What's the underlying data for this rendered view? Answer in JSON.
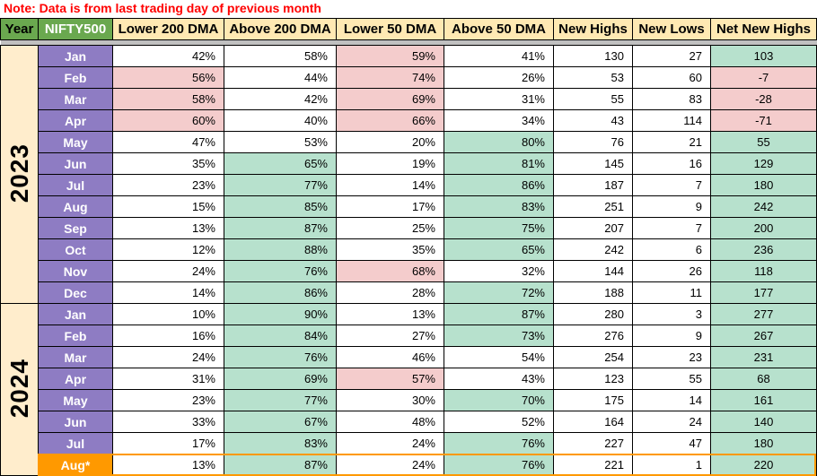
{
  "note": "Note: Data is from last trading day of previous month",
  "colors": {
    "header_green": "#6aa84f",
    "header_cream": "#ffe9b3",
    "year_cream": "#ffedcc",
    "month_purple": "#8e7cc3",
    "month_orange": "#ff9900",
    "cell_green": "#b7e1cd",
    "cell_pink": "#f4cccc",
    "band_gray": "#c0c0c0",
    "note_red": "#ff0000"
  },
  "chart_data": {
    "type": "table",
    "corner_headers": [
      "Year",
      "NIFTY500"
    ],
    "columns": [
      "Lower 200 DMA",
      "Above 200 DMA",
      "Lower 50 DMA",
      "Above 50 DMA",
      "New Highs",
      "New Lows",
      "Net New Highs"
    ],
    "years": [
      {
        "label": "2023",
        "rows": [
          {
            "month": "Jan",
            "values": [
              "42%",
              "58%",
              "59%",
              "41%",
              "130",
              "27",
              "103"
            ],
            "fills": [
              "w",
              "w",
              "p",
              "w",
              "w",
              "w",
              "g"
            ]
          },
          {
            "month": "Feb",
            "values": [
              "56%",
              "44%",
              "74%",
              "26%",
              "53",
              "60",
              "-7"
            ],
            "fills": [
              "p",
              "w",
              "p",
              "w",
              "w",
              "w",
              "p"
            ]
          },
          {
            "month": "Mar",
            "values": [
              "58%",
              "42%",
              "69%",
              "31%",
              "55",
              "83",
              "-28"
            ],
            "fills": [
              "p",
              "w",
              "p",
              "w",
              "w",
              "w",
              "p"
            ]
          },
          {
            "month": "Apr",
            "values": [
              "60%",
              "40%",
              "66%",
              "34%",
              "43",
              "114",
              "-71"
            ],
            "fills": [
              "p",
              "w",
              "p",
              "w",
              "w",
              "w",
              "p"
            ]
          },
          {
            "month": "May",
            "values": [
              "47%",
              "53%",
              "20%",
              "80%",
              "76",
              "21",
              "55"
            ],
            "fills": [
              "w",
              "w",
              "w",
              "g",
              "w",
              "w",
              "g"
            ]
          },
          {
            "month": "Jun",
            "values": [
              "35%",
              "65%",
              "19%",
              "81%",
              "145",
              "16",
              "129"
            ],
            "fills": [
              "w",
              "g",
              "w",
              "g",
              "w",
              "w",
              "g"
            ]
          },
          {
            "month": "Jul",
            "values": [
              "23%",
              "77%",
              "14%",
              "86%",
              "187",
              "7",
              "180"
            ],
            "fills": [
              "w",
              "g",
              "w",
              "g",
              "w",
              "w",
              "g"
            ]
          },
          {
            "month": "Aug",
            "values": [
              "15%",
              "85%",
              "17%",
              "83%",
              "251",
              "9",
              "242"
            ],
            "fills": [
              "w",
              "g",
              "w",
              "g",
              "w",
              "w",
              "g"
            ]
          },
          {
            "month": "Sep",
            "values": [
              "13%",
              "87%",
              "25%",
              "75%",
              "207",
              "7",
              "200"
            ],
            "fills": [
              "w",
              "g",
              "w",
              "g",
              "w",
              "w",
              "g"
            ]
          },
          {
            "month": "Oct",
            "values": [
              "12%",
              "88%",
              "35%",
              "65%",
              "242",
              "6",
              "236"
            ],
            "fills": [
              "w",
              "g",
              "w",
              "g",
              "w",
              "w",
              "g"
            ]
          },
          {
            "month": "Nov",
            "values": [
              "24%",
              "76%",
              "68%",
              "32%",
              "144",
              "26",
              "118"
            ],
            "fills": [
              "w",
              "g",
              "p",
              "w",
              "w",
              "w",
              "g"
            ]
          },
          {
            "month": "Dec",
            "values": [
              "14%",
              "86%",
              "28%",
              "72%",
              "188",
              "11",
              "177"
            ],
            "fills": [
              "w",
              "g",
              "w",
              "g",
              "w",
              "w",
              "g"
            ]
          }
        ]
      },
      {
        "label": "2024",
        "rows": [
          {
            "month": "Jan",
            "values": [
              "10%",
              "90%",
              "13%",
              "87%",
              "280",
              "3",
              "277"
            ],
            "fills": [
              "w",
              "g",
              "w",
              "g",
              "w",
              "w",
              "g"
            ]
          },
          {
            "month": "Feb",
            "values": [
              "16%",
              "84%",
              "27%",
              "73%",
              "276",
              "9",
              "267"
            ],
            "fills": [
              "w",
              "g",
              "w",
              "g",
              "w",
              "w",
              "g"
            ]
          },
          {
            "month": "Mar",
            "values": [
              "24%",
              "76%",
              "46%",
              "54%",
              "254",
              "23",
              "231"
            ],
            "fills": [
              "w",
              "g",
              "w",
              "w",
              "w",
              "w",
              "g"
            ]
          },
          {
            "month": "Apr",
            "values": [
              "31%",
              "69%",
              "57%",
              "43%",
              "123",
              "55",
              "68"
            ],
            "fills": [
              "w",
              "g",
              "p",
              "w",
              "w",
              "w",
              "g"
            ]
          },
          {
            "month": "May",
            "values": [
              "23%",
              "77%",
              "30%",
              "70%",
              "175",
              "14",
              "161"
            ],
            "fills": [
              "w",
              "g",
              "w",
              "g",
              "w",
              "w",
              "g"
            ]
          },
          {
            "month": "Jun",
            "values": [
              "33%",
              "67%",
              "48%",
              "52%",
              "164",
              "24",
              "140"
            ],
            "fills": [
              "w",
              "g",
              "w",
              "w",
              "w",
              "w",
              "g"
            ]
          },
          {
            "month": "Jul",
            "values": [
              "17%",
              "83%",
              "24%",
              "76%",
              "227",
              "47",
              "180"
            ],
            "fills": [
              "w",
              "g",
              "w",
              "g",
              "w",
              "w",
              "g"
            ]
          },
          {
            "month": "Aug*",
            "values": [
              "13%",
              "87%",
              "24%",
              "76%",
              "221",
              "1",
              "220"
            ],
            "fills": [
              "w",
              "g",
              "w",
              "g",
              "w",
              "w",
              "g"
            ],
            "highlight": true
          }
        ]
      }
    ]
  }
}
